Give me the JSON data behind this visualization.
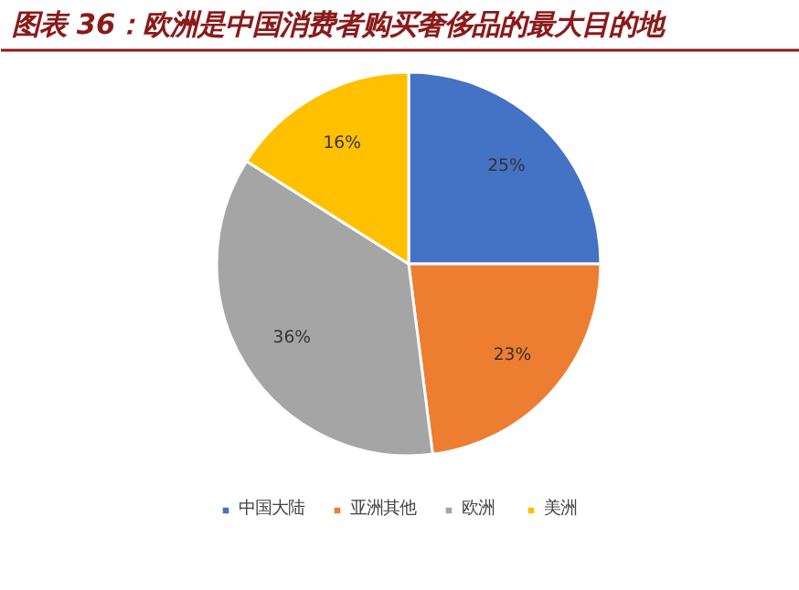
{
  "chart_data": {
    "type": "pie",
    "title": "图表 36：欧洲是中国消费者购买奢侈品的最大目的地",
    "categories": [
      "中国大陆",
      "亚洲其他",
      "欧洲",
      "美洲"
    ],
    "values": [
      25,
      23,
      36,
      16
    ],
    "colors": [
      "#4472c4",
      "#ed7d31",
      "#a5a5a5",
      "#ffc000"
    ],
    "value_labels": [
      "25%",
      "23%",
      "36%",
      "16%"
    ],
    "legend": "bottom"
  }
}
